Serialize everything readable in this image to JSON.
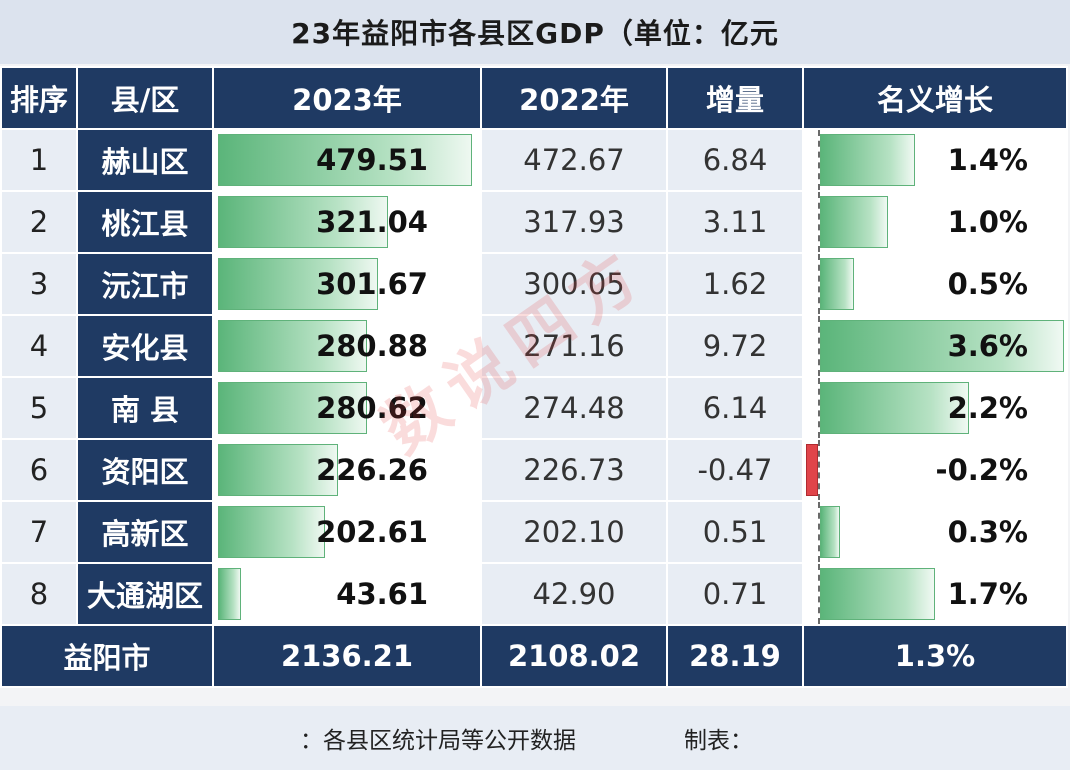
{
  "title": "23年益阳市各县区GDP（单位：亿元",
  "headers": [
    "排序",
    "县/区",
    "2023年",
    "2022年",
    "增量",
    "名义增长"
  ],
  "rows": [
    {
      "rank": "1",
      "county": "赫山区",
      "gdp2023": "479.51",
      "gdp2022": "472.67",
      "increase": "6.84",
      "growth": "1.4%"
    },
    {
      "rank": "2",
      "county": "桃江县",
      "gdp2023": "321.04",
      "gdp2022": "317.93",
      "increase": "3.11",
      "growth": "1.0%"
    },
    {
      "rank": "3",
      "county": "沅江市",
      "gdp2023": "301.67",
      "gdp2022": "300.05",
      "increase": "1.62",
      "growth": "0.5%"
    },
    {
      "rank": "4",
      "county": "安化县",
      "gdp2023": "280.88",
      "gdp2022": "271.16",
      "increase": "9.72",
      "growth": "3.6%"
    },
    {
      "rank": "5",
      "county": "南 县",
      "gdp2023": "280.62",
      "gdp2022": "274.48",
      "increase": "6.14",
      "growth": "2.2%"
    },
    {
      "rank": "6",
      "county": "资阳区",
      "gdp2023": "226.26",
      "gdp2022": "226.73",
      "increase": "-0.47",
      "growth": "-0.2%"
    },
    {
      "rank": "7",
      "county": "高新区",
      "gdp2023": "202.61",
      "gdp2022": "202.10",
      "increase": "0.51",
      "growth": "0.3%"
    },
    {
      "rank": "8",
      "county": "大通湖区",
      "gdp2023": "43.61",
      "gdp2022": "42.90",
      "increase": "0.71",
      "growth": "1.7%"
    }
  ],
  "total": {
    "label": "益阳市",
    "gdp2023": "2136.21",
    "gdp2022": "2108.02",
    "increase": "28.19",
    "growth": "1.3%"
  },
  "bar_values": {
    "gdp2023": [
      479.51,
      321.04,
      301.67,
      280.88,
      280.62,
      226.26,
      202.61,
      43.61
    ],
    "growth_pct": [
      1.4,
      1.0,
      0.5,
      3.6,
      2.2,
      -0.2,
      0.3,
      1.7
    ]
  },
  "footer": {
    "source": "：各县区统计局等公开数据",
    "maker": "制表："
  },
  "watermark": "数说四方",
  "colors": {
    "header_bg": "#1f3a63",
    "bar_green": "#5bb57a",
    "negative_red": "#e0444a",
    "cell_bg": "#e8edf4"
  }
}
